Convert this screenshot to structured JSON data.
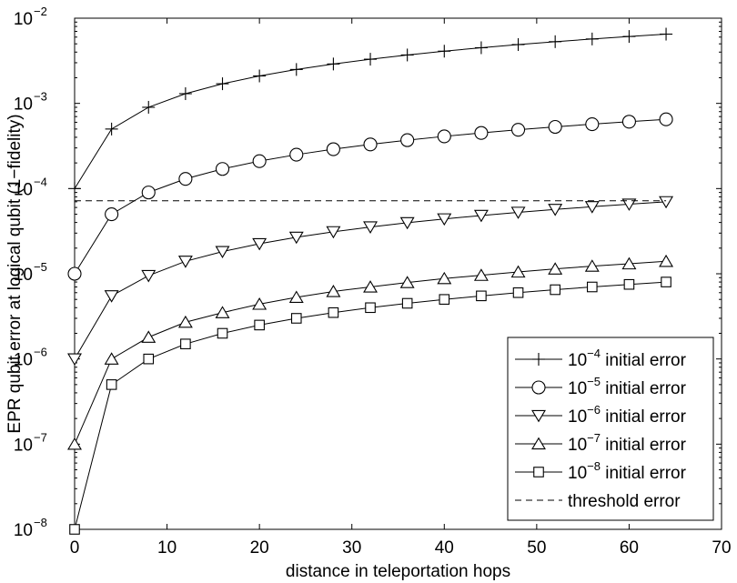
{
  "chart_data": {
    "type": "line",
    "title": "",
    "xlabel": "distance in teleportation hops",
    "ylabel": "EPR qubit error at logical qubit (1−fidelity)",
    "xlim": [
      0,
      70
    ],
    "ylim": [
      1e-08,
      0.01
    ],
    "yscale": "log",
    "grid": false,
    "legend_position": "bottom-right",
    "x_ticks": [
      "0",
      "10",
      "20",
      "30",
      "40",
      "50",
      "60",
      "70"
    ],
    "y_ticks": [
      {
        "base": "10",
        "exp": "−8"
      },
      {
        "base": "10",
        "exp": "−7"
      },
      {
        "base": "10",
        "exp": "−6"
      },
      {
        "base": "10",
        "exp": "−5"
      },
      {
        "base": "10",
        "exp": "−4"
      },
      {
        "base": "10",
        "exp": "−3"
      },
      {
        "base": "10",
        "exp": "−2"
      }
    ],
    "x": [
      0,
      4,
      8,
      12,
      16,
      20,
      24,
      28,
      32,
      36,
      40,
      44,
      48,
      52,
      56,
      60,
      64
    ],
    "series": [
      {
        "legend_base": "10",
        "legend_exp": "−4",
        "legend_text": " initial error",
        "marker": "plus",
        "values": [
          0.0001,
          0.0005,
          0.0009,
          0.0013,
          0.0017,
          0.0021,
          0.0025,
          0.0029,
          0.0033,
          0.0037,
          0.0041,
          0.0045,
          0.0049,
          0.0053,
          0.0057,
          0.0061,
          0.0065
        ]
      },
      {
        "legend_base": "10",
        "legend_exp": "−5",
        "legend_text": " initial error",
        "marker": "circle",
        "values": [
          1e-05,
          5e-05,
          9e-05,
          0.00013,
          0.00017,
          0.00021,
          0.00025,
          0.00029,
          0.00033,
          0.00037,
          0.00041,
          0.00045,
          0.00049,
          0.00053,
          0.00057,
          0.00061,
          0.00065
        ]
      },
      {
        "legend_base": "10",
        "legend_exp": "−6",
        "legend_text": " initial error",
        "marker": "triangle-down",
        "values": [
          1e-06,
          5.5e-06,
          9.5e-06,
          1.4e-05,
          1.82e-05,
          2.25e-05,
          2.68e-05,
          3.11e-05,
          3.54e-05,
          3.97e-05,
          4.4e-05,
          4.83e-05,
          5.26e-05,
          5.69e-05,
          6.12e-05,
          6.55e-05,
          7e-05
        ]
      },
      {
        "legend_base": "10",
        "legend_exp": "−7",
        "legend_text": " initial error",
        "marker": "triangle-up",
        "values": [
          1e-07,
          1e-06,
          1.8e-06,
          2.7e-06,
          3.5e-06,
          4.4e-06,
          5.3e-06,
          6.2e-06,
          7e-06,
          7.9e-06,
          8.8e-06,
          9.6e-06,
          1.05e-05,
          1.14e-05,
          1.23e-05,
          1.31e-05,
          1.4e-05
        ]
      },
      {
        "legend_base": "10",
        "legend_exp": "−8",
        "legend_text": " initial error",
        "marker": "square",
        "values": [
          1e-08,
          5e-07,
          1e-06,
          1.5e-06,
          2e-06,
          2.5e-06,
          3e-06,
          3.5e-06,
          4e-06,
          4.5e-06,
          5e-06,
          5.5e-06,
          6e-06,
          6.5e-06,
          7e-06,
          7.5e-06,
          8e-06
        ]
      }
    ],
    "threshold": {
      "legend_text": "threshold error",
      "value": 7.2e-05,
      "style": "dashed"
    }
  }
}
